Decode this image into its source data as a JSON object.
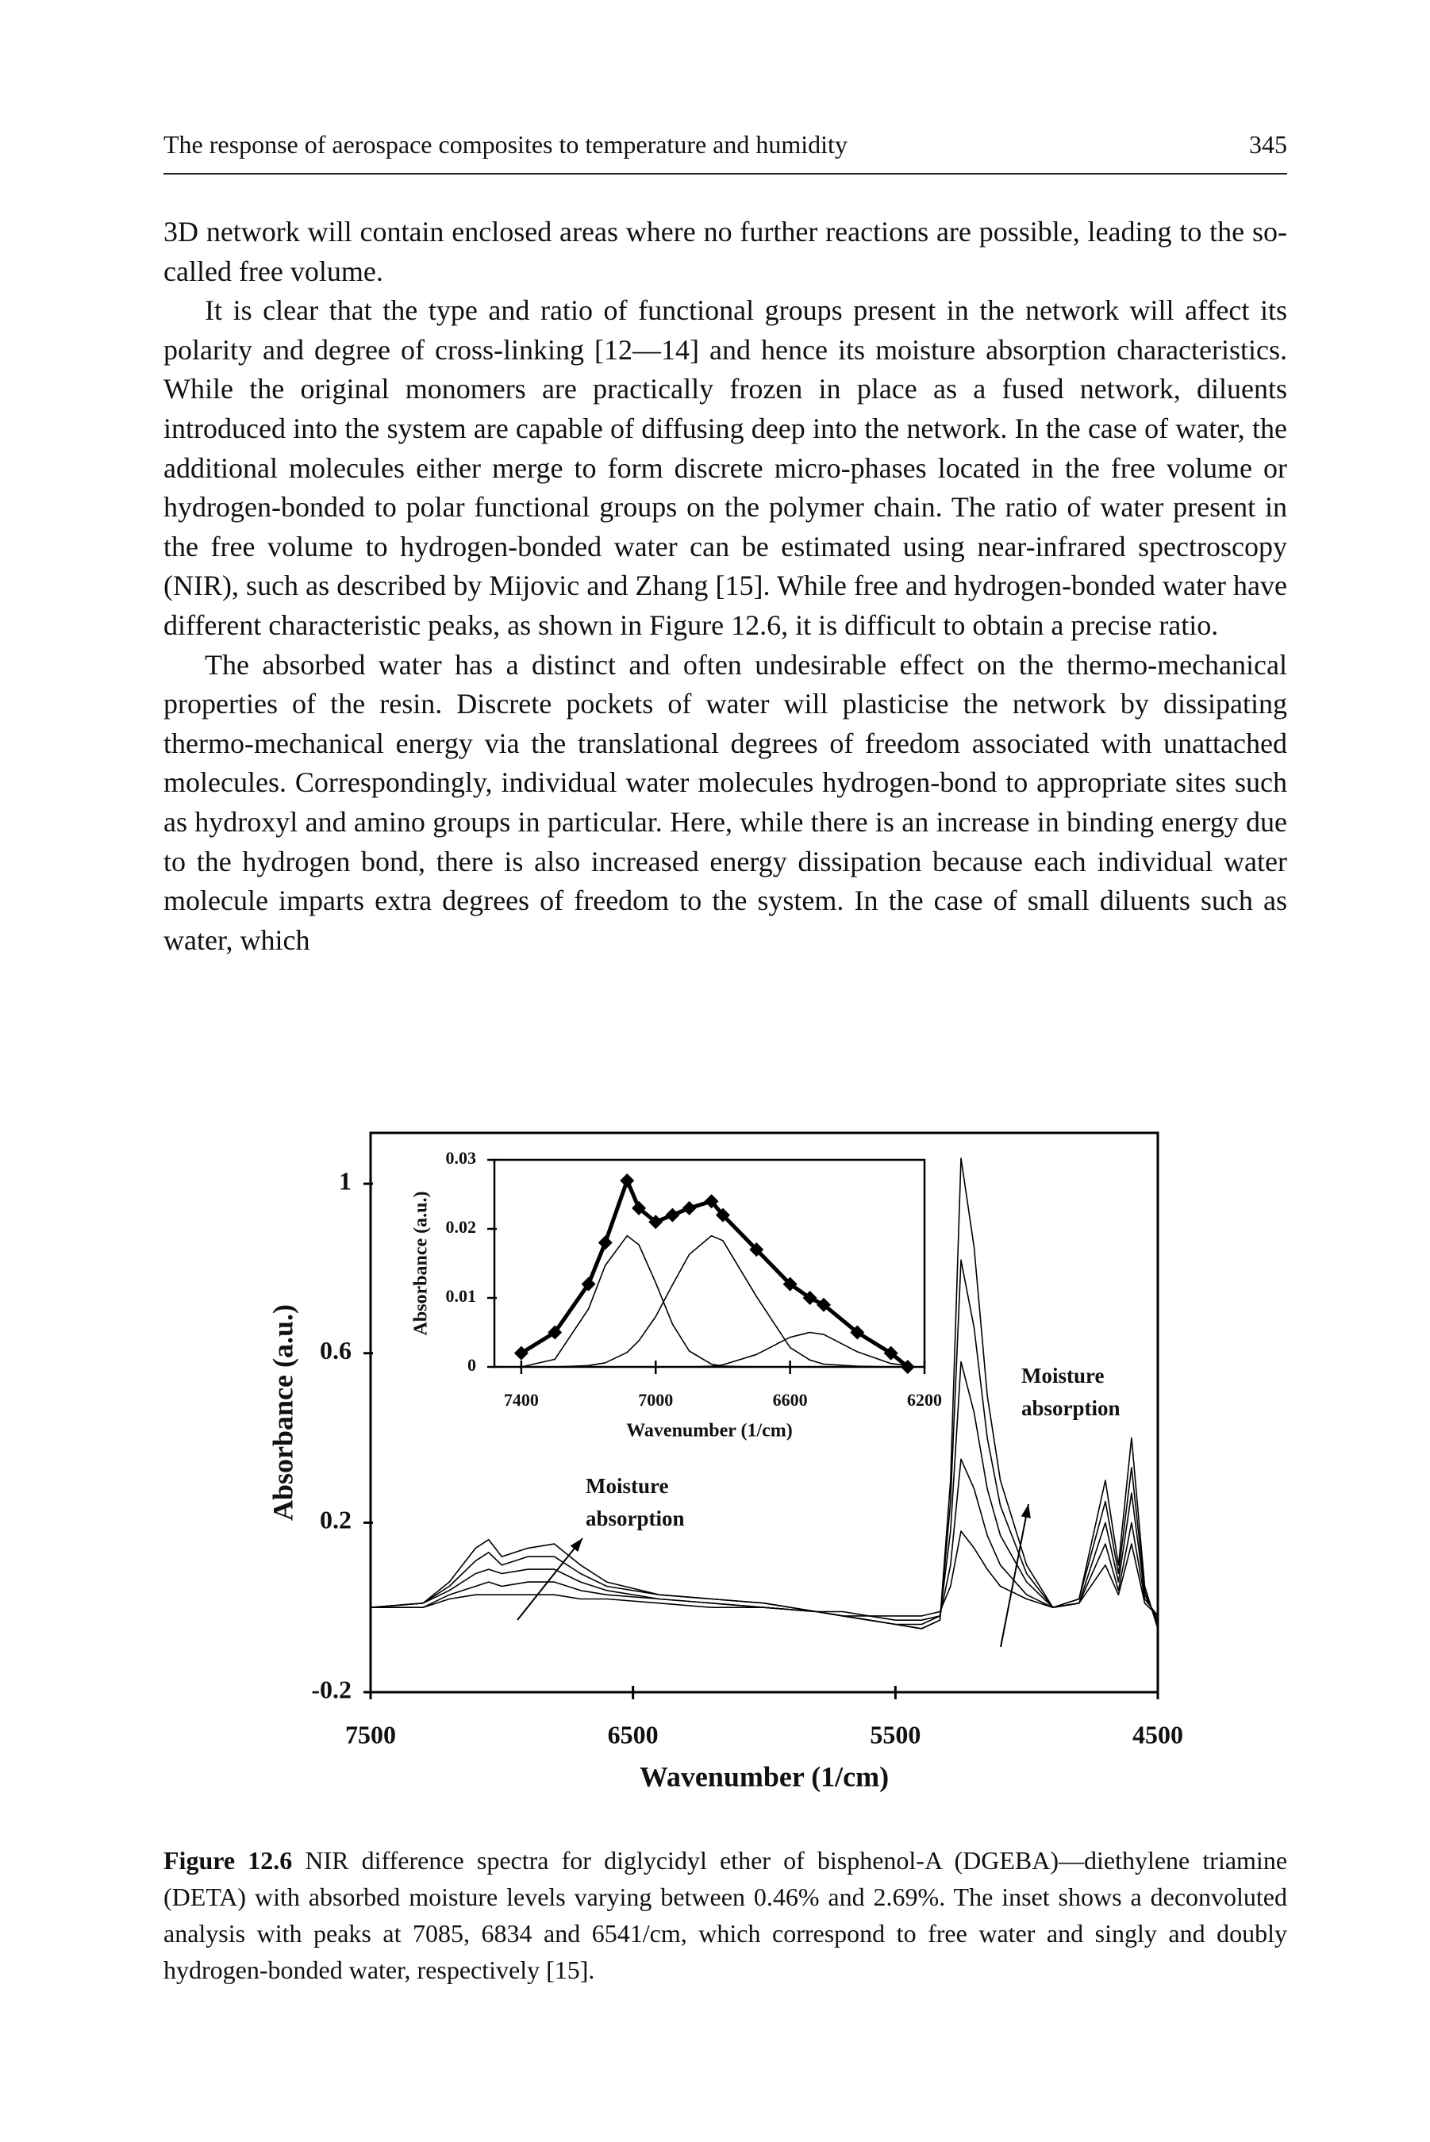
{
  "header": {
    "title": "The response of aerospace composites to temperature and humidity",
    "page_number": "345"
  },
  "paragraphs": [
    "3D network will contain enclosed areas where no further reactions are possible, leading to the so-called free volume.",
    "It is clear that the type and ratio of functional groups present in the network will affect its polarity and degree of cross-linking [12—14] and hence its moisture absorption characteristics. While the original monomers are practically frozen in place as a fused network, diluents introduced into the system are capable of diffusing deep into the network. In the case of water, the additional molecules either merge to form discrete micro-phases located in the free volume or hydrogen-bonded to polar functional groups on the polymer chain. The ratio of water present in the free volume to hydrogen-bonded water can be estimated using near-infrared spectroscopy (NIR), such as described by Mijovic and Zhang [15]. While free and hydrogen-bonded water have different characteristic peaks, as shown in Figure 12.6, it is difficult to obtain a precise ratio.",
    "The absorbed water has a distinct and often undesirable effect on the thermo-mechanical properties of the resin. Discrete pockets of water will plasticise the network by dissipating thermo-mechanical energy via the translational degrees of freedom associated with unattached molecules. Correspondingly, individual water molecules hydrogen-bond to appropriate sites such as hydroxyl and amino groups in particular. Here, while there is an increase in binding energy due to the hydrogen bond, there is also increased energy dissipation because each individual water molecule imparts extra degrees of freedom to the system. In the case of small diluents such as water, which"
  ],
  "chart_data": [
    {
      "type": "line",
      "x_label": "Wavenumber (1/cm)",
      "y_label": "Absorbance (a.u.)",
      "xlim": [
        7500,
        4500
      ],
      "xticks": [
        7500,
        6500,
        5500,
        4500
      ],
      "ylim": [
        -0.2,
        1.12
      ],
      "yticks": [
        -0.2,
        0.2,
        0.6,
        1
      ],
      "x": [
        7500,
        7300,
        7200,
        7100,
        7050,
        7000,
        6900,
        6800,
        6700,
        6600,
        6400,
        6200,
        6000,
        5800,
        5700,
        5600,
        5500,
        5400,
        5330,
        5290,
        5250,
        5200,
        5150,
        5100,
        5000,
        4900,
        4800,
        4700,
        4650,
        4600,
        4550,
        4500
      ],
      "series": [
        {
          "color": "#000000",
          "values": [
            0,
            0.01,
            0.06,
            0.14,
            0.16,
            0.12,
            0.14,
            0.15,
            0.1,
            0.06,
            0.03,
            0.02,
            0.01,
            -0.01,
            -0.02,
            -0.03,
            -0.04,
            -0.05,
            -0.03,
            0.3,
            1.06,
            0.85,
            0.5,
            0.3,
            0.1,
            0,
            0.02,
            0.3,
            0.1,
            0.4,
            0.05,
            -0.05
          ]
        },
        {
          "color": "#000000",
          "values": [
            0,
            0.01,
            0.05,
            0.11,
            0.13,
            0.1,
            0.12,
            0.12,
            0.08,
            0.05,
            0.03,
            0.02,
            0.01,
            -0.01,
            -0.02,
            -0.03,
            -0.04,
            -0.05,
            -0.03,
            0.25,
            0.82,
            0.66,
            0.4,
            0.24,
            0.08,
            0,
            0.02,
            0.25,
            0.08,
            0.33,
            0.04,
            -0.04
          ]
        },
        {
          "color": "#000000",
          "values": [
            0,
            0.01,
            0.04,
            0.08,
            0.09,
            0.08,
            0.09,
            0.09,
            0.06,
            0.04,
            0.02,
            0.01,
            0,
            -0.01,
            -0.02,
            -0.03,
            -0.04,
            -0.04,
            -0.02,
            0.18,
            0.58,
            0.46,
            0.28,
            0.17,
            0.06,
            0,
            0.01,
            0.2,
            0.06,
            0.27,
            0.03,
            -0.03
          ]
        },
        {
          "color": "#000000",
          "values": [
            0,
            0,
            0.03,
            0.05,
            0.06,
            0.05,
            0.06,
            0.06,
            0.04,
            0.03,
            0.02,
            0.01,
            0,
            -0.01,
            -0.02,
            -0.02,
            -0.03,
            -0.03,
            -0.02,
            0.1,
            0.35,
            0.28,
            0.17,
            0.1,
            0.03,
            0,
            0.01,
            0.15,
            0.04,
            0.2,
            0.02,
            -0.02
          ]
        },
        {
          "color": "#000000",
          "values": [
            0,
            0,
            0.02,
            0.03,
            0.03,
            0.03,
            0.03,
            0.03,
            0.02,
            0.02,
            0.01,
            0,
            0,
            -0.01,
            -0.01,
            -0.02,
            -0.02,
            -0.02,
            -0.01,
            0.05,
            0.18,
            0.14,
            0.09,
            0.05,
            0.02,
            0,
            0.01,
            0.1,
            0.03,
            0.15,
            0.01,
            -0.02
          ]
        }
      ],
      "annotations": [
        {
          "lines": [
            "Moisture",
            "absorption"
          ]
        },
        {
          "lines": [
            "Moisture",
            "absorption"
          ]
        }
      ]
    },
    {
      "type": "line",
      "x_label": "Wavenumber (1/cm)",
      "y_label": "Absorbance (a.u.)",
      "xlim": [
        7480,
        6200
      ],
      "xticks": [
        7400,
        7000,
        6600,
        6200
      ],
      "ylim": [
        0,
        0.03
      ],
      "yticks": [
        0,
        0.01,
        0.02,
        0.03
      ],
      "x": [
        7400,
        7300,
        7200,
        7150,
        7085,
        7050,
        7000,
        6950,
        6900,
        6834,
        6800,
        6700,
        6600,
        6541,
        6500,
        6400,
        6300,
        6250
      ],
      "series": [
        {
          "color": "#000000",
          "marker": "diamond",
          "values": [
            0.002,
            0.005,
            0.012,
            0.018,
            0.027,
            0.023,
            0.021,
            0.022,
            0.023,
            0.024,
            0.022,
            0.017,
            0.012,
            0.01,
            0.009,
            0.005,
            0.002,
            0
          ]
        },
        {
          "color": "#000000",
          "values": [
            0,
            0.0011,
            0.0084,
            0.0147,
            0.019,
            0.0177,
            0.0122,
            0.0062,
            0.0023,
            0.0004,
            0.0001,
            0,
            0,
            0,
            0,
            0,
            0,
            0
          ]
        },
        {
          "color": "#000000",
          "values": [
            0,
            0,
            0.0002,
            0.0006,
            0.0021,
            0.0038,
            0.0073,
            0.0119,
            0.0163,
            0.019,
            0.0183,
            0.0102,
            0.0028,
            0.001,
            0.0004,
            0.0001,
            0,
            0
          ]
        },
        {
          "color": "#000000",
          "values": [
            0,
            0,
            0,
            0,
            0,
            0,
            0,
            0,
            0,
            0.0001,
            0.0003,
            0.0018,
            0.0043,
            0.005,
            0.0047,
            0.0022,
            0.0005,
            0.0002
          ]
        }
      ]
    }
  ],
  "caption": {
    "label": "Figure 12.6",
    "text": "NIR difference spectra for diglycidyl ether of bisphenol-A (DGEBA)—diethylene triamine (DETA) with absorbed moisture levels varying between 0.46% and 2.69%. The inset shows a deconvoluted analysis with peaks at 7085, 6834 and 6541/cm, which correspond to free water and singly and doubly hydrogen-bonded water, respectively [15]."
  }
}
